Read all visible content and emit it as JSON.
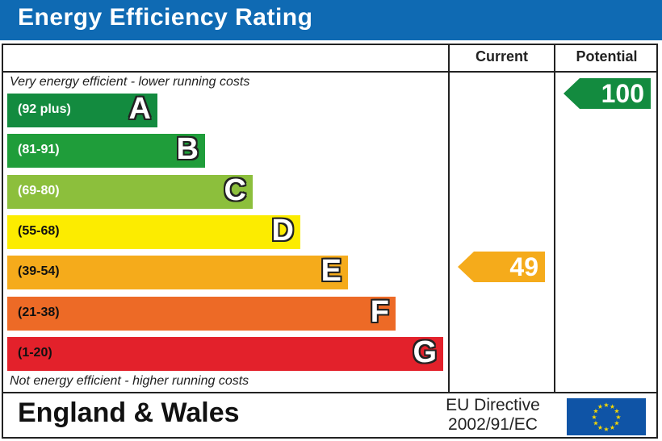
{
  "title": "Energy Efficiency Rating",
  "columns": {
    "current": "Current",
    "potential": "Potential"
  },
  "top_caption": "Very energy efficient - lower running costs",
  "bottom_caption": "Not energy efficient - higher running costs",
  "footer": {
    "country": "England & Wales",
    "directive_line1": "EU Directive",
    "directive_line2": "2002/91/EC"
  },
  "chart_data": {
    "type": "bar",
    "title": "Energy Efficiency Rating",
    "categories": [
      "A",
      "B",
      "C",
      "D",
      "E",
      "F",
      "G"
    ],
    "ranges": [
      "(92 plus)",
      "(81-91)",
      "(69-80)",
      "(55-68)",
      "(39-54)",
      "(21-38)",
      "(1-20)"
    ],
    "colors": [
      "#138b3f",
      "#1f9d3a",
      "#8cbf3c",
      "#fcec00",
      "#f5ab1b",
      "#ed6a26",
      "#e3212b"
    ],
    "current": {
      "value": 49,
      "band": "E",
      "color": "#f5ab1b"
    },
    "potential": {
      "value": 100,
      "band": "A",
      "color": "#138b3f"
    }
  }
}
